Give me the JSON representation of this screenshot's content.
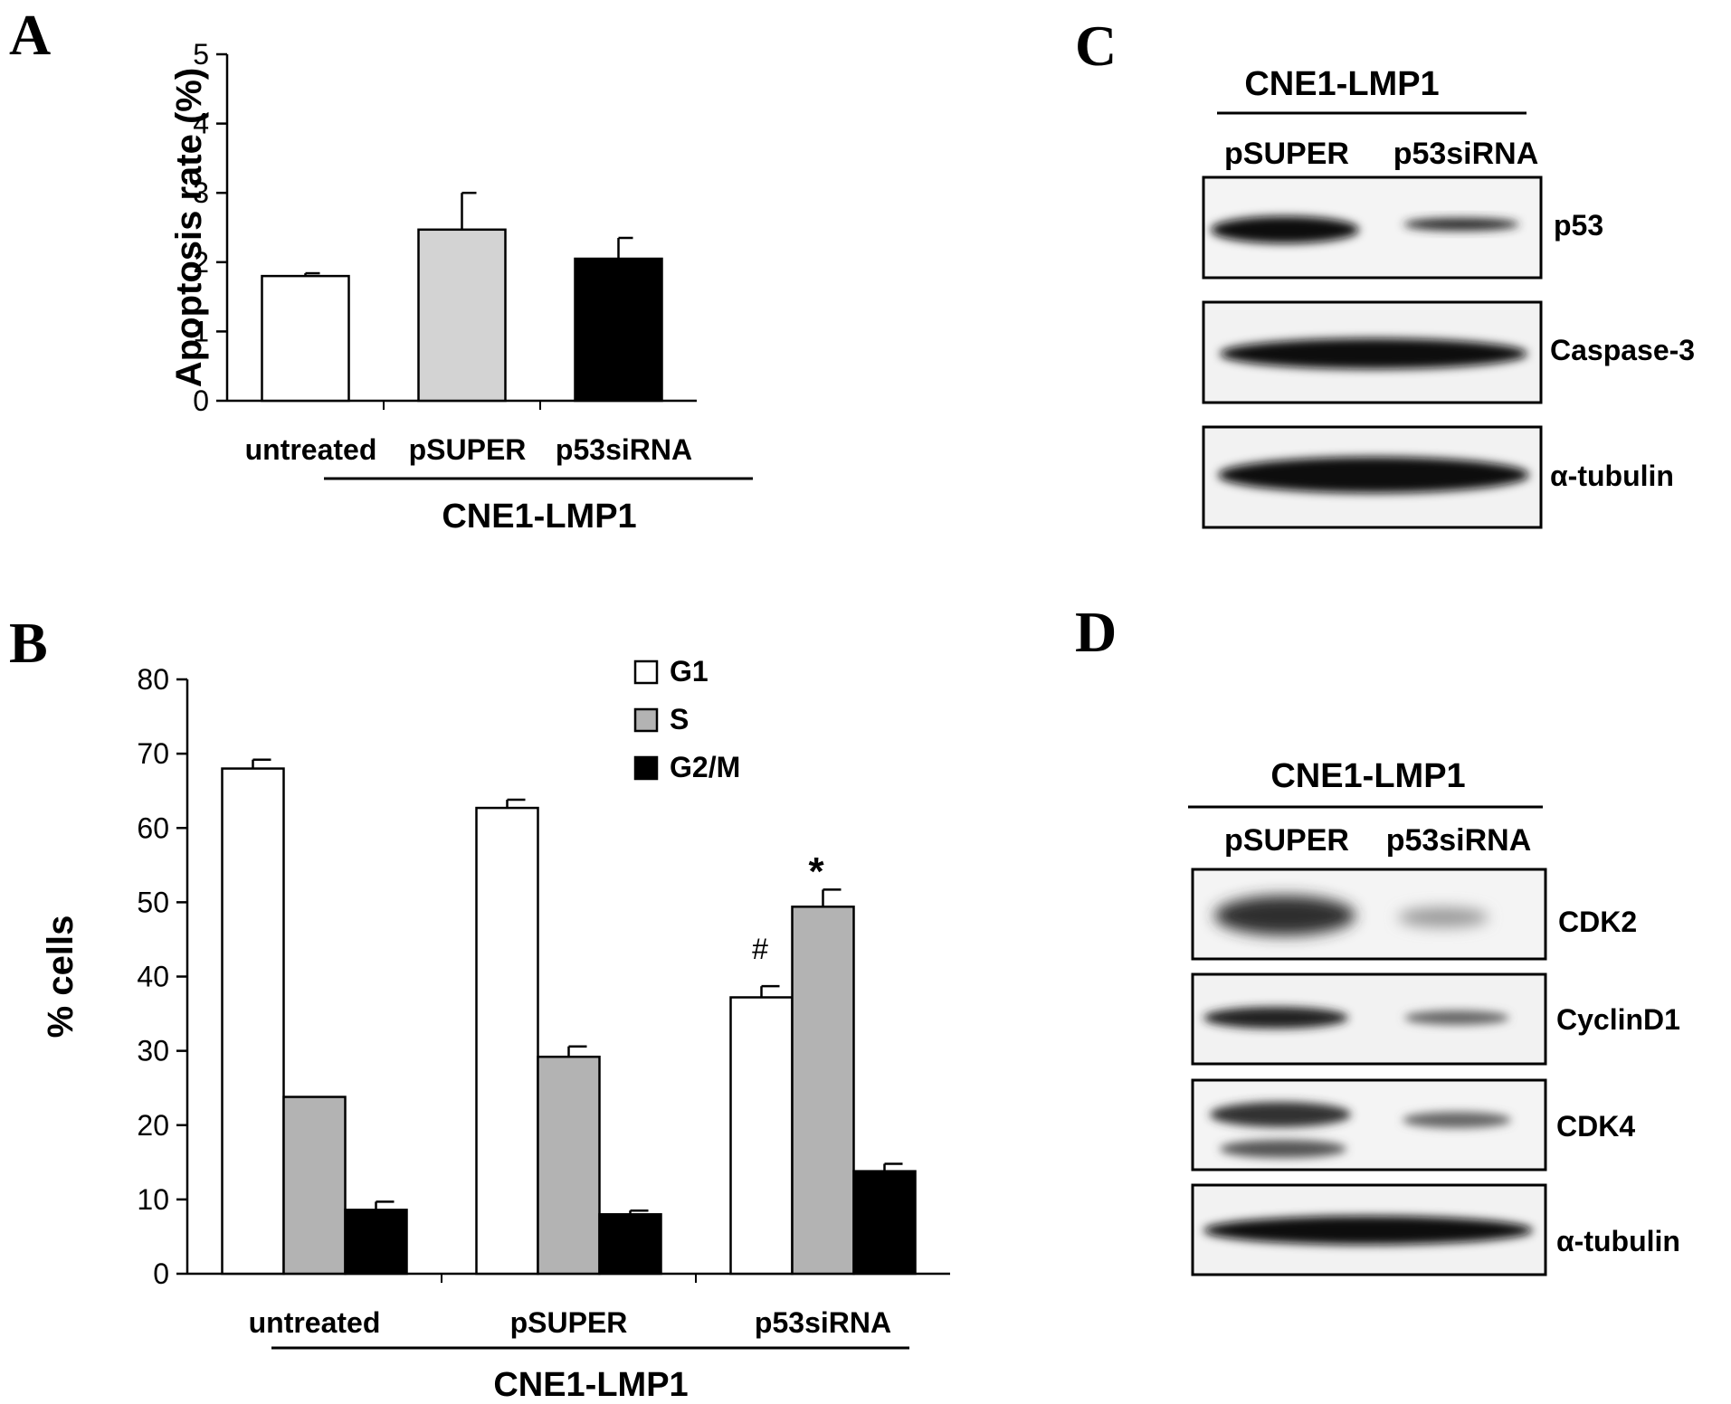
{
  "panels": {
    "A": {
      "label": "A",
      "group_label": "CNE1-LMP1"
    },
    "B": {
      "label": "B",
      "group_label": "CNE1-LMP1",
      "annotations": {
        "hash": "#",
        "star": "*"
      }
    },
    "C": {
      "label": "C",
      "title": "CNE1-LMP1",
      "lanes": [
        "pSUPER",
        "p53siRNA"
      ],
      "blots": [
        {
          "name": "p53"
        },
        {
          "name": "Caspase-3"
        },
        {
          "name": "α-tubulin"
        }
      ]
    },
    "D": {
      "label": "D",
      "title": "CNE1-LMP1",
      "lanes": [
        "pSUPER",
        "p53siRNA"
      ],
      "blots": [
        {
          "name": "CDK2"
        },
        {
          "name": "CyclinD1"
        },
        {
          "name": "CDK4"
        },
        {
          "name": "α-tubulin"
        }
      ]
    }
  },
  "chart_data": [
    {
      "type": "bar",
      "panel": "A",
      "ylabel": "Apoptosis rate (%)",
      "ylim": [
        0,
        5
      ],
      "yticks": [
        0,
        1,
        2,
        3,
        4,
        5
      ],
      "categories": [
        "untreated",
        "pSUPER",
        "p53siRNA"
      ],
      "values": [
        1.8,
        2.47,
        2.05
      ],
      "errors": [
        0.04,
        0.53,
        0.3
      ],
      "colors": [
        "#ffffff",
        "#d3d3d3",
        "#000000"
      ]
    },
    {
      "type": "bar",
      "panel": "B",
      "ylabel": "% cells",
      "ylim": [
        0,
        80
      ],
      "yticks": [
        0,
        10,
        20,
        30,
        40,
        50,
        60,
        70,
        80
      ],
      "categories": [
        "untreated",
        "pSUPER",
        "p53siRNA"
      ],
      "legend_position": "top-right",
      "series": [
        {
          "name": "G1",
          "values": [
            68,
            62.7,
            37.2
          ],
          "errors": [
            1.2,
            1.1,
            1.5
          ],
          "color": "#ffffff"
        },
        {
          "name": "S",
          "values": [
            23.8,
            29.2,
            49.4
          ],
          "errors": [
            0,
            1.4,
            2.3
          ],
          "color": "#b3b3b3"
        },
        {
          "name": "G2/M",
          "values": [
            8.6,
            8,
            13.8
          ],
          "errors": [
            1.1,
            0.5,
            1
          ],
          "color": "#000000"
        }
      ]
    }
  ]
}
